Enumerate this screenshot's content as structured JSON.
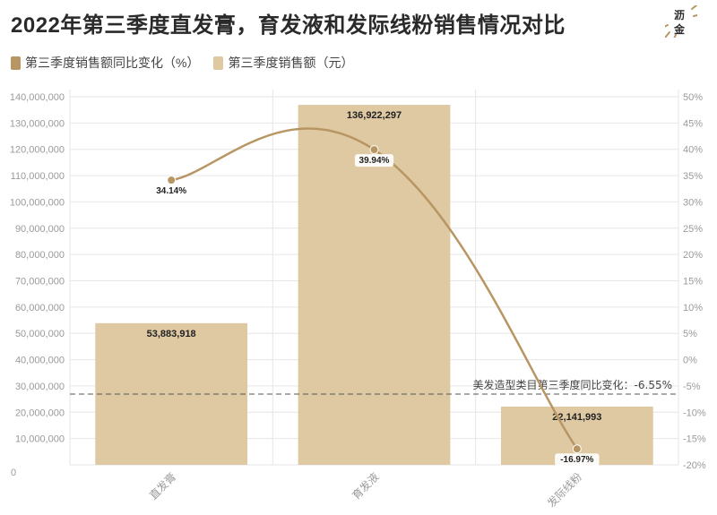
{
  "title": "2022年第三季度直发膏，育发液和发际线粉销售情况对比",
  "logo": {
    "line1": "沥",
    "line2": "金"
  },
  "colors": {
    "bar": "#dfc9a3",
    "line": "#b89663",
    "grid": "#e6e6e6"
  },
  "chart_data": {
    "type": "bar",
    "categories": [
      "直发膏",
      "育发液",
      "发际线粉"
    ],
    "series": [
      {
        "name": "第三季度销售额同比变化（%）",
        "type": "line",
        "axis": "right",
        "values": [
          34.14,
          39.94,
          -16.97
        ],
        "labels": [
          "34.14%",
          "39.94%",
          "-16.97%"
        ]
      },
      {
        "name": "第三季度销售额（元）",
        "type": "bar",
        "axis": "left",
        "values": [
          53883918,
          136922297,
          22141993
        ],
        "labels": [
          "53,883,918",
          "136,922,297",
          "22,141,993"
        ]
      }
    ],
    "y_left": {
      "range": [
        0,
        140000000
      ],
      "ticks": [
        {
          "value": 0,
          "label": "0"
        },
        {
          "value": 10000000,
          "label": "10,000,000"
        },
        {
          "value": 20000000,
          "label": "20,000,000"
        },
        {
          "value": 30000000,
          "label": "30,000,000"
        },
        {
          "value": 40000000,
          "label": "40,000,000"
        },
        {
          "value": 50000000,
          "label": "50,000,000"
        },
        {
          "value": 60000000,
          "label": "60,000,000"
        },
        {
          "value": 70000000,
          "label": "70,000,000"
        },
        {
          "value": 80000000,
          "label": "80,000,000"
        },
        {
          "value": 90000000,
          "label": "90,000,000"
        },
        {
          "value": 100000000,
          "label": "100,000,000"
        },
        {
          "value": 110000000,
          "label": "110,000,000"
        },
        {
          "value": 120000000,
          "label": "120,000,000"
        },
        {
          "value": 130000000,
          "label": "130,000,000"
        },
        {
          "value": 140000000,
          "label": "140,000,000"
        }
      ]
    },
    "y_right": {
      "range": [
        -20,
        50
      ],
      "ticks": [
        {
          "value": -20,
          "label": "-20%"
        },
        {
          "value": -15,
          "label": "-15%"
        },
        {
          "value": -10,
          "label": "-10%"
        },
        {
          "value": -5,
          "label": "-5%"
        },
        {
          "value": 0,
          "label": "0%"
        },
        {
          "value": 5,
          "label": "5%"
        },
        {
          "value": 10,
          "label": "10%"
        },
        {
          "value": 15,
          "label": "15%"
        },
        {
          "value": 20,
          "label": "20%"
        },
        {
          "value": 25,
          "label": "25%"
        },
        {
          "value": 30,
          "label": "30%"
        },
        {
          "value": 35,
          "label": "35%"
        },
        {
          "value": 40,
          "label": "40%"
        },
        {
          "value": 45,
          "label": "45%"
        },
        {
          "value": 50,
          "label": "50%"
        }
      ]
    },
    "reference_line": {
      "axis": "right",
      "value": -6.55,
      "label": "美发造型类目第三季度同比变化：-6.55%"
    },
    "grid": true,
    "legend_position": "top-left"
  }
}
